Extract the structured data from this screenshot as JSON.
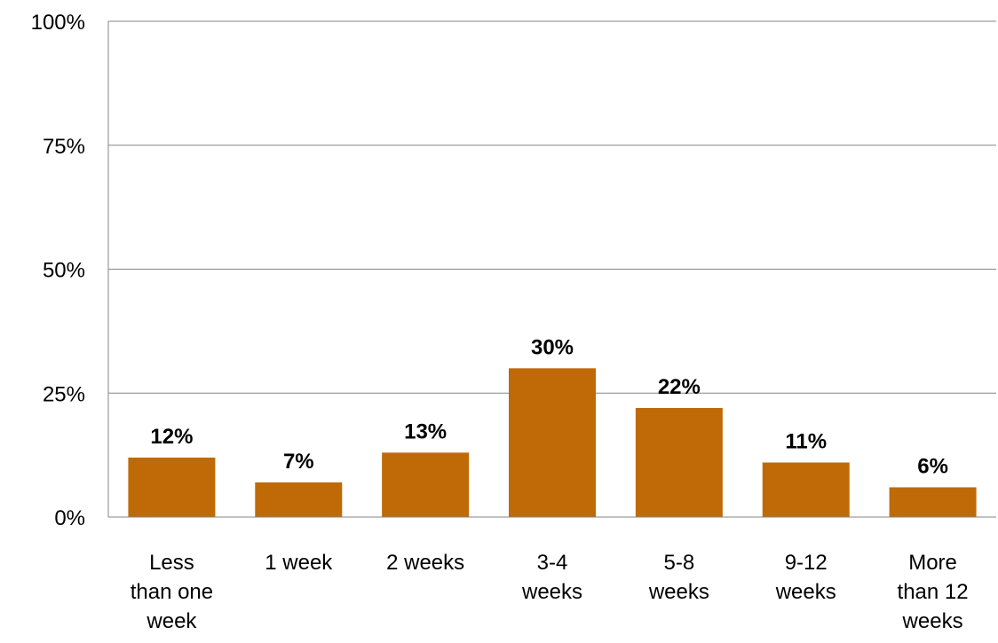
{
  "chart_data": {
    "type": "bar",
    "title": "",
    "xlabel": "",
    "ylabel": "",
    "categories": [
      [
        "Less",
        "than one",
        "week"
      ],
      [
        "1 week"
      ],
      [
        "2 weeks"
      ],
      [
        "3-4",
        "weeks"
      ],
      [
        "5-8",
        "weeks"
      ],
      [
        "9-12",
        "weeks"
      ],
      [
        "More",
        "than 12",
        "weeks"
      ]
    ],
    "values": [
      12,
      7,
      13,
      30,
      22,
      11,
      6
    ],
    "data_labels": [
      "12%",
      "7%",
      "13%",
      "30%",
      "22%",
      "11%",
      "6%"
    ],
    "yticks": [
      0,
      25,
      50,
      75,
      100
    ],
    "ytick_labels": [
      "0%",
      "25%",
      "50%",
      "75%",
      "100%"
    ],
    "ylim": [
      0,
      100
    ],
    "grid": true,
    "legend": "none",
    "bar_color": "#BF6A07"
  }
}
